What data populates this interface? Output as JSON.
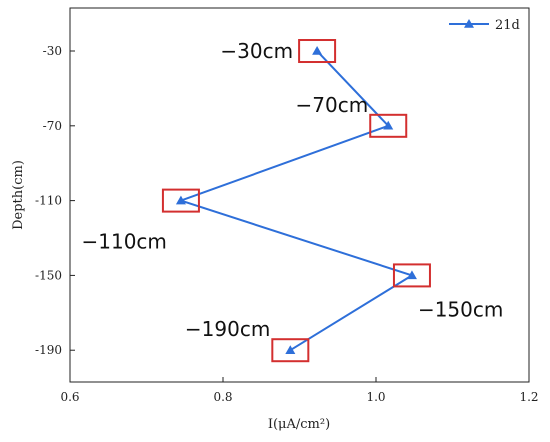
{
  "chart_data": {
    "type": "line",
    "title": "",
    "xlabel": "I(μA/cm²)",
    "ylabel": "Depth(cm)",
    "xlim": [
      0.6,
      1.2
    ],
    "ylim": [
      -207,
      -7
    ],
    "xticks": [
      "0.6",
      "0.8",
      "1.0",
      "1.2"
    ],
    "yticks": [
      "-30",
      "-70",
      "-110",
      "-150",
      "-190"
    ],
    "grid": false,
    "legend_position": "top-right",
    "series": [
      {
        "name": "21d",
        "color": "#2e6fd9",
        "marker": "triangle",
        "x": [
          0.923,
          1.016,
          0.745,
          1.047,
          0.888
        ],
        "y": [
          -30,
          -70,
          -110,
          -150,
          -190
        ]
      }
    ],
    "annotations": [
      {
        "text": "−30cm",
        "x": 0.923,
        "y": -30,
        "side": "left"
      },
      {
        "text": "−70cm",
        "x": 1.016,
        "y": -70,
        "side": "upper-left"
      },
      {
        "text": "−110cm",
        "x": 0.745,
        "y": -110,
        "side": "lower-left"
      },
      {
        "text": "−150cm",
        "x": 1.047,
        "y": -150,
        "side": "lower-right"
      },
      {
        "text": "−190cm",
        "x": 0.888,
        "y": -190,
        "side": "upper-left"
      }
    ],
    "highlight_box_color": "#d32f2f"
  }
}
